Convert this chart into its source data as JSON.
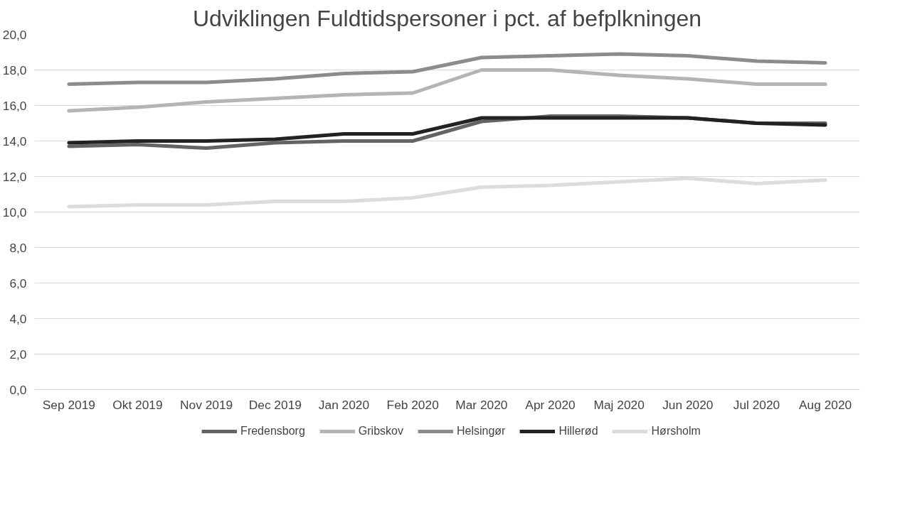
{
  "chart_data": {
    "type": "line",
    "title": "Udviklingen Fuldtidspersoner i pct. af befplkningen",
    "categories": [
      "Sep 2019",
      "Okt 2019",
      "Nov 2019",
      "Dec 2019",
      "Jan 2020",
      "Feb 2020",
      "Mar 2020",
      "Apr 2020",
      "Maj 2020",
      "Jun 2020",
      "Jul 2020",
      "Aug 2020"
    ],
    "series": [
      {
        "name": "Fredensborg",
        "color": "#646464",
        "values": [
          13.7,
          13.8,
          13.6,
          13.9,
          14.0,
          14.0,
          15.1,
          15.4,
          15.4,
          15.3,
          15.0,
          15.0
        ]
      },
      {
        "name": "Gribskov",
        "color": "#b4b4b4",
        "values": [
          15.7,
          15.9,
          16.2,
          16.4,
          16.6,
          16.7,
          18.0,
          18.0,
          17.7,
          17.5,
          17.2,
          17.2
        ]
      },
      {
        "name": "Helsingør",
        "color": "#8c8c8c",
        "values": [
          17.2,
          17.3,
          17.3,
          17.5,
          17.8,
          17.9,
          18.7,
          18.8,
          18.9,
          18.8,
          18.5,
          18.4
        ]
      },
      {
        "name": "Hillerød",
        "color": "#222222",
        "values": [
          13.9,
          14.0,
          14.0,
          14.1,
          14.4,
          14.4,
          15.3,
          15.3,
          15.3,
          15.3,
          15.0,
          14.9
        ]
      },
      {
        "name": "Hørsholm",
        "color": "#dcdcdc",
        "values": [
          10.3,
          10.4,
          10.4,
          10.6,
          10.6,
          10.8,
          11.4,
          11.5,
          11.7,
          11.9,
          11.6,
          11.8
        ]
      }
    ],
    "ylim": [
      0,
      20
    ],
    "yticks": [
      {
        "value": 0,
        "label": "0,0"
      },
      {
        "value": 2,
        "label": "2,0"
      },
      {
        "value": 4,
        "label": "4,0"
      },
      {
        "value": 6,
        "label": "6,0"
      },
      {
        "value": 8,
        "label": "8,0"
      },
      {
        "value": 10,
        "label": "10,0"
      },
      {
        "value": 12,
        "label": "12,0"
      },
      {
        "value": 14,
        "label": "14,0"
      },
      {
        "value": 16,
        "label": "16,0"
      },
      {
        "value": 18,
        "label": "18,0"
      },
      {
        "value": 20,
        "label": "20,0"
      }
    ],
    "grid": "y",
    "legend": "bottom",
    "marker": "none",
    "line_style": "solid"
  }
}
